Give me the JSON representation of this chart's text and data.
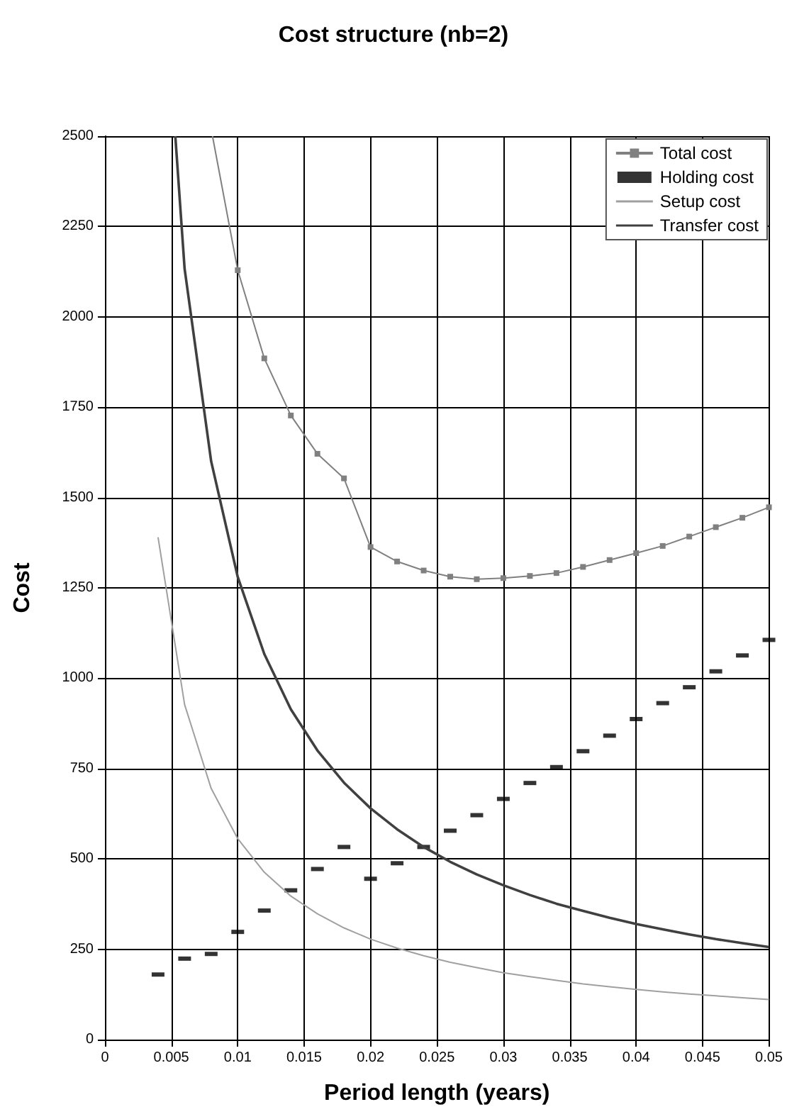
{
  "chart_data": {
    "type": "line",
    "title": "Cost structure (nb=2)",
    "xlabel": "Period length (years)",
    "ylabel": "Cost",
    "x": [
      0.004,
      0.006,
      0.008,
      0.01,
      0.012,
      0.014,
      0.016,
      0.018,
      0.02,
      0.022,
      0.024,
      0.026,
      0.028,
      0.03,
      0.032,
      0.034,
      0.036,
      0.038,
      0.04,
      0.042,
      0.044,
      0.046,
      0.048,
      0.05
    ],
    "series": [
      {
        "name": "Total cost",
        "color": "#808080",
        "marker": "square",
        "x": [
          0.0081,
          0.01,
          0.012,
          0.014,
          0.016,
          0.018,
          0.02,
          0.022,
          0.024,
          0.026,
          0.028,
          0.03,
          0.032,
          0.034,
          0.036,
          0.038,
          0.04,
          0.042,
          0.044,
          0.046,
          0.048,
          0.05
        ],
        "values": [
          2500,
          2129,
          1885,
          1727,
          1621,
          1553,
          1363,
          1323,
          1298,
          1281,
          1274,
          1277,
          1283,
          1291,
          1308,
          1327,
          1346,
          1366,
          1392,
          1418,
          1444,
          1473
        ]
      },
      {
        "name": "Holding cost",
        "type": "scatter",
        "color": "#000000",
        "marker": "square",
        "values": [
          180,
          224,
          237,
          298,
          357,
          413,
          472,
          533,
          445,
          488,
          533,
          578,
          621,
          666,
          710,
          754,
          798,
          841,
          887,
          931,
          975,
          1019,
          1063,
          1106
        ]
      },
      {
        "name": "Setup cost",
        "color": "#a0a0a0",
        "marker": "none",
        "values": [
          1390,
          927,
          695,
          556,
          463,
          397,
          348,
          309,
          278,
          253,
          232,
          214,
          199,
          185,
          174,
          164,
          154,
          146,
          139,
          132,
          126,
          121,
          116,
          111
        ]
      },
      {
        "name": "Transfer cost",
        "color": "#404040",
        "marker": "none",
        "x": [
          0.0053,
          0.006,
          0.008,
          0.01,
          0.012,
          0.014,
          0.016,
          0.018,
          0.02,
          0.022,
          0.024,
          0.026,
          0.028,
          0.03,
          0.032,
          0.034,
          0.036,
          0.038,
          0.04,
          0.042,
          0.044,
          0.046,
          0.048,
          0.05
        ],
        "values": [
          2500,
          2133,
          1600,
          1280,
          1067,
          914,
          800,
          711,
          640,
          582,
          533,
          492,
          457,
          427,
          400,
          376,
          356,
          337,
          320,
          305,
          291,
          278,
          267,
          256
        ]
      }
    ],
    "xlim": [
      0,
      0.05
    ],
    "xticks": [
      0,
      0.005,
      0.01,
      0.015,
      0.02,
      0.025,
      0.03,
      0.035,
      0.04,
      0.045,
      0.05
    ],
    "ylim": [
      0,
      2500
    ],
    "yticks": [
      0,
      250,
      500,
      750,
      1000,
      1250,
      1500,
      1750,
      2000,
      2250,
      2500
    ],
    "grid": true,
    "legend": "top right"
  }
}
